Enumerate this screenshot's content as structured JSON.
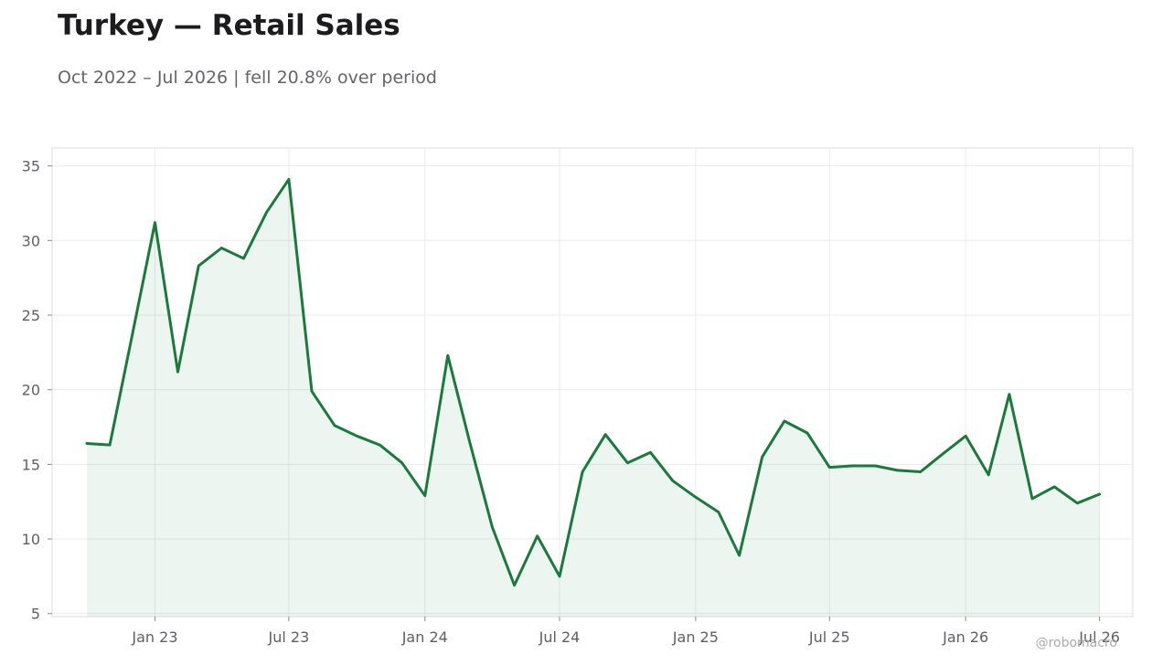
{
  "header": {
    "title": "Turkey — Retail Sales",
    "subtitle": "Oct 2022 – Jul 2026 | fell 20.8% over period"
  },
  "watermark": "@robomacro",
  "colors": {
    "line": "#1a7a3c",
    "fill": "#1a7a3c",
    "grid": "#ebebeb",
    "frame": "#dddddd"
  },
  "chart_data": {
    "type": "area",
    "title": "Turkey — Retail Sales",
    "xlabel": "",
    "ylabel": "",
    "x": [
      "2022-10",
      "2022-11",
      "2022-12",
      "2023-01",
      "2023-02",
      "2023-03",
      "2023-04",
      "2023-05",
      "2023-06",
      "2023-07",
      "2023-08",
      "2023-09",
      "2023-10",
      "2023-11",
      "2023-12",
      "2024-01",
      "2024-02",
      "2024-03",
      "2024-04",
      "2024-05",
      "2024-06",
      "2024-07",
      "2024-08",
      "2024-09",
      "2024-10",
      "2024-11",
      "2024-12",
      "2025-01",
      "2025-02",
      "2025-03",
      "2025-04",
      "2025-05",
      "2025-06",
      "2025-07",
      "2025-08",
      "2025-09",
      "2025-10",
      "2025-11",
      "2025-12",
      "2026-01",
      "2026-02",
      "2026-03",
      "2026-04",
      "2026-05",
      "2026-06",
      "2026-07"
    ],
    "series": [
      {
        "values": [
          16.4,
          16.3,
          23.6,
          31.2,
          21.2,
          28.3,
          29.5,
          28.8,
          31.9,
          34.1,
          19.9,
          17.6,
          16.9,
          16.3,
          15.1,
          12.9,
          22.3,
          16.6,
          10.8,
          6.9,
          10.2,
          7.5,
          14.5,
          17.0,
          15.1,
          15.8,
          13.9,
          12.8,
          11.8,
          8.9,
          15.5,
          17.9,
          17.1,
          14.8,
          14.9,
          14.9,
          14.6,
          14.5,
          15.7,
          16.9,
          14.3,
          19.7,
          12.7,
          13.5,
          12.4,
          13.0
        ]
      }
    ],
    "x_ticks": [
      "Jan 23",
      "Jul 23",
      "Jan 24",
      "Jul 24",
      "Jan 25",
      "Jul 25",
      "Jan 26",
      "Jul 26"
    ],
    "y_ticks": [
      5,
      10,
      15,
      20,
      25,
      30,
      35
    ],
    "ylim": [
      4.8,
      36.2
    ],
    "xlim": [
      "2022-08-15",
      "2026-08-15"
    ],
    "grid": true,
    "legend": "none"
  }
}
